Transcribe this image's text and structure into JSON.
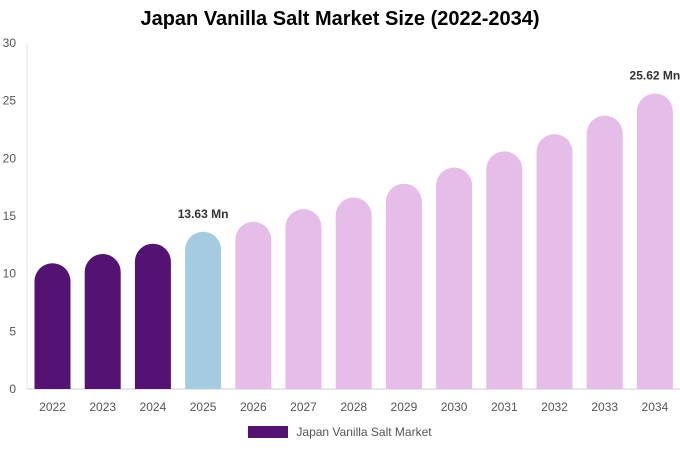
{
  "colors": {
    "historical": "#541273",
    "current": "#a4cbdf",
    "forecast": "#e6bde9"
  },
  "chart_data": {
    "type": "bar",
    "title": "Japan Vanilla Salt Market Size (2022-2034)",
    "xlabel": "",
    "ylabel": "",
    "ylim": [
      0,
      30
    ],
    "yticks": [
      "0",
      "5",
      "10",
      "15",
      "20",
      "25",
      "30"
    ],
    "grid": false,
    "legend_position": "bottom",
    "categories": [
      "2022",
      "2023",
      "2024",
      "2025",
      "2026",
      "2027",
      "2028",
      "2029",
      "2030",
      "2031",
      "2032",
      "2033",
      "2034"
    ],
    "series": [
      {
        "name": "Japan Vanilla Salt Market",
        "values": [
          10.9,
          11.7,
          12.6,
          13.63,
          14.5,
          15.6,
          16.6,
          17.8,
          19.2,
          20.6,
          22.1,
          23.7,
          25.62
        ],
        "segments": [
          "historical",
          "historical",
          "historical",
          "current",
          "forecast",
          "forecast",
          "forecast",
          "forecast",
          "forecast",
          "forecast",
          "forecast",
          "forecast",
          "forecast"
        ]
      }
    ],
    "annotations": [
      {
        "category": "2025",
        "text": "13.63 Mn"
      },
      {
        "category": "2034",
        "text": "25.62 Mn"
      }
    ]
  },
  "legend": {
    "label": "Japan Vanilla Salt Market"
  }
}
